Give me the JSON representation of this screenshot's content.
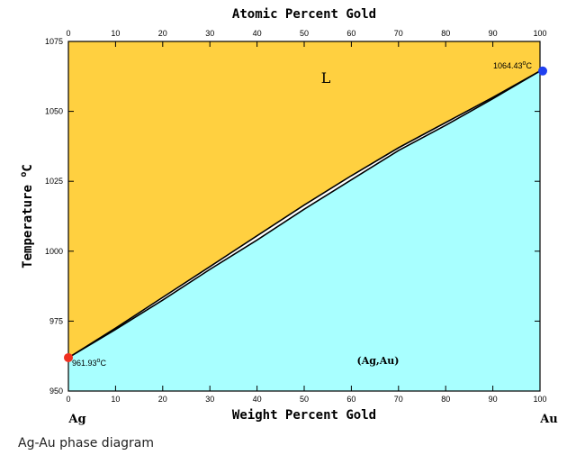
{
  "title_top": "Atomic Percent Gold",
  "title_bottom": "Weight Percent Gold",
  "y_axis_title": "Temperature ",
  "y_axis_unit_sup": "o",
  "y_axis_unit": "C",
  "left_element": "Ag",
  "right_element": "Au",
  "liquid_label": "L",
  "solid_label": "(Ag,Au)",
  "ag_melting_label": "961.93",
  "au_melting_label": "1064.43",
  "degree_sup": "o",
  "degree_unit": "C",
  "caption": "Ag-Au phase diagram",
  "colors": {
    "liquid": "#ffd040",
    "solid": "#a8ffff",
    "ag_point": "#f03020",
    "au_point": "#2040f0"
  },
  "chart_data": {
    "type": "phase-diagram",
    "x_range": [
      0,
      100
    ],
    "y_range": [
      950,
      1075
    ],
    "x_ticks": [
      0,
      10,
      20,
      30,
      40,
      50,
      60,
      70,
      80,
      90,
      100
    ],
    "top_ticks": [
      0,
      10,
      20,
      30,
      40,
      50,
      60,
      70,
      80,
      90,
      100
    ],
    "y_ticks": [
      950,
      975,
      1000,
      1025,
      1050,
      1075
    ],
    "liquidus": [
      [
        0,
        961.93
      ],
      [
        10,
        972.5
      ],
      [
        20,
        983.5
      ],
      [
        30,
        994.5
      ],
      [
        40,
        1005.5
      ],
      [
        50,
        1016.5
      ],
      [
        60,
        1027
      ],
      [
        70,
        1037
      ],
      [
        80,
        1046
      ],
      [
        90,
        1055
      ],
      [
        100,
        1064.43
      ]
    ],
    "solidus": [
      [
        0,
        961.93
      ],
      [
        10,
        972
      ],
      [
        20,
        982.5
      ],
      [
        30,
        993.5
      ],
      [
        40,
        1004
      ],
      [
        50,
        1015
      ],
      [
        60,
        1025.5
      ],
      [
        70,
        1036
      ],
      [
        80,
        1045
      ],
      [
        90,
        1054.5
      ],
      [
        100,
        1064.43
      ]
    ],
    "points": [
      {
        "x": 0,
        "y": 961.93,
        "label": "961.93 °C"
      },
      {
        "x": 100,
        "y": 1064.43,
        "label": "1064.43 °C"
      }
    ]
  }
}
